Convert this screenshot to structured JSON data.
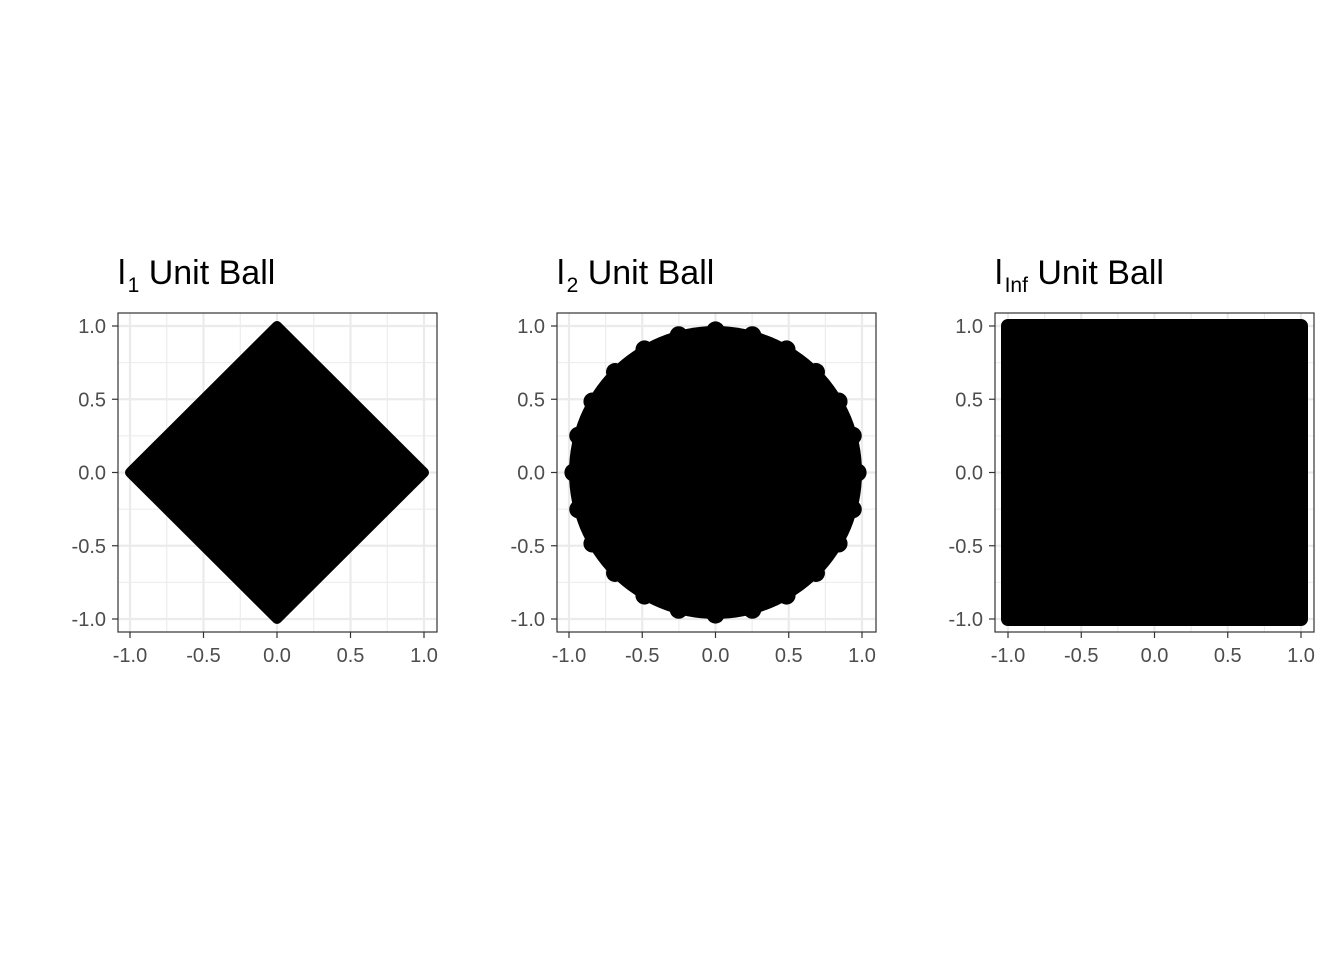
{
  "chart_data": [
    {
      "type": "scatter",
      "title": {
        "base": "l",
        "sub": "1",
        "rest": " Unit Ball"
      },
      "shape": "diamond",
      "description_norm": "l1",
      "xlim": [
        -1.0,
        1.0
      ],
      "ylim": [
        -1.0,
        1.0
      ],
      "x_ticks": [
        "-1.0",
        "-0.5",
        "0.0",
        "0.5",
        "1.0"
      ],
      "y_ticks": [
        "-1.0",
        "-0.5",
        "0.0",
        "0.5",
        "1.0"
      ],
      "x_tick_values": [
        -1.0,
        -0.5,
        0.0,
        0.5,
        1.0
      ],
      "y_tick_values": [
        -1.0,
        -0.5,
        0.0,
        0.5,
        1.0
      ],
      "grid": true,
      "point_color": "#000000",
      "boundary_points": [
        [
          -1,
          0
        ],
        [
          0,
          1
        ],
        [
          1,
          0
        ],
        [
          0,
          -1
        ]
      ]
    },
    {
      "type": "scatter",
      "title": {
        "base": "l",
        "sub": "2",
        "rest": " Unit Ball"
      },
      "shape": "circle",
      "description_norm": "l2",
      "xlim": [
        -1.0,
        1.0
      ],
      "ylim": [
        -1.0,
        1.0
      ],
      "x_ticks": [
        "-1.0",
        "-0.5",
        "0.0",
        "0.5",
        "1.0"
      ],
      "y_ticks": [
        "-1.0",
        "-0.5",
        "0.0",
        "0.5",
        "1.0"
      ],
      "x_tick_values": [
        -1.0,
        -0.5,
        0.0,
        0.5,
        1.0
      ],
      "y_tick_values": [
        -1.0,
        -0.5,
        0.0,
        0.5,
        1.0
      ],
      "grid": true,
      "point_color": "#000000",
      "boundary_points": [
        [
          1,
          0
        ],
        [
          0,
          1
        ],
        [
          -1,
          0
        ],
        [
          0,
          -1
        ]
      ]
    },
    {
      "type": "scatter",
      "title": {
        "base": "l",
        "sub": "Inf",
        "rest": " Unit Ball"
      },
      "shape": "square",
      "description_norm": "linf",
      "xlim": [
        -1.0,
        1.0
      ],
      "ylim": [
        -1.0,
        1.0
      ],
      "x_ticks": [
        "-1.0",
        "-0.5",
        "0.0",
        "0.5",
        "1.0"
      ],
      "y_ticks": [
        "-1.0",
        "-0.5",
        "0.0",
        "0.5",
        "1.0"
      ],
      "x_tick_values": [
        -1.0,
        -0.5,
        0.0,
        0.5,
        1.0
      ],
      "y_tick_values": [
        -1.0,
        -0.5,
        0.0,
        0.5,
        1.0
      ],
      "grid": true,
      "point_color": "#000000",
      "boundary_points": [
        [
          -1,
          1
        ],
        [
          1,
          1
        ],
        [
          1,
          -1
        ],
        [
          -1,
          -1
        ]
      ]
    }
  ]
}
